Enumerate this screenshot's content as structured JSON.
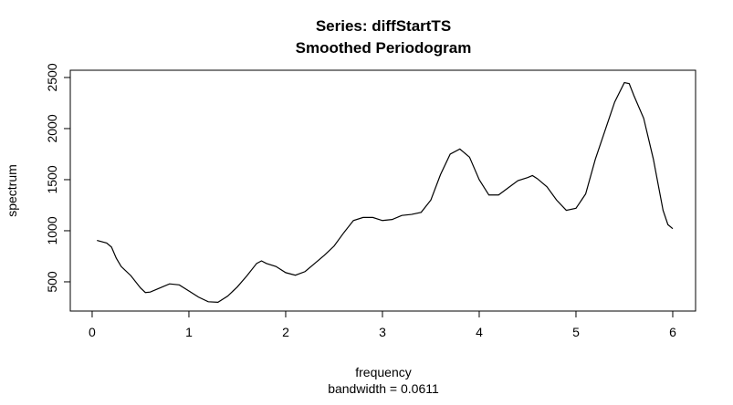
{
  "chart_data": {
    "type": "line",
    "title": "Series: diffStartTS",
    "subtitle": "Smoothed Periodogram",
    "x_label": "frequency",
    "x_sublabel": "bandwidth = 0.0611",
    "y_label": "spectrum",
    "x": [
      0.05,
      0.15,
      0.2,
      0.25,
      0.3,
      0.4,
      0.5,
      0.55,
      0.6,
      0.7,
      0.8,
      0.9,
      1.0,
      1.1,
      1.2,
      1.3,
      1.4,
      1.5,
      1.6,
      1.7,
      1.75,
      1.8,
      1.9,
      2.0,
      2.1,
      2.2,
      2.3,
      2.4,
      2.5,
      2.6,
      2.7,
      2.8,
      2.9,
      3.0,
      3.1,
      3.2,
      3.3,
      3.4,
      3.5,
      3.6,
      3.7,
      3.8,
      3.9,
      4.0,
      4.1,
      4.2,
      4.3,
      4.4,
      4.5,
      4.55,
      4.6,
      4.7,
      4.8,
      4.9,
      5.0,
      5.1,
      5.2,
      5.3,
      5.4,
      5.5,
      5.55,
      5.6,
      5.7,
      5.8,
      5.9,
      5.95,
      6.0
    ],
    "series": [
      {
        "color": "#000000",
        "values": [
          905,
          880,
          840,
          730,
          650,
          560,
          440,
          395,
          400,
          440,
          480,
          470,
          410,
          350,
          305,
          300,
          360,
          450,
          560,
          680,
          705,
          680,
          650,
          590,
          565,
          600,
          680,
          760,
          850,
          980,
          1100,
          1130,
          1130,
          1100,
          1110,
          1150,
          1160,
          1180,
          1300,
          1550,
          1750,
          1800,
          1720,
          1500,
          1350,
          1350,
          1420,
          1490,
          1520,
          1540,
          1510,
          1430,
          1300,
          1200,
          1220,
          1360,
          1700,
          1980,
          2260,
          2450,
          2440,
          2320,
          2100,
          1700,
          1200,
          1060,
          1020
        ]
      }
    ],
    "xlim": [
      -0.226,
      6.236
    ],
    "ylim": [
      214,
      2571
    ],
    "xticks": [
      0,
      1,
      2,
      3,
      4,
      5,
      6
    ],
    "yticks": [
      500,
      1000,
      1500,
      2000,
      2500
    ]
  }
}
